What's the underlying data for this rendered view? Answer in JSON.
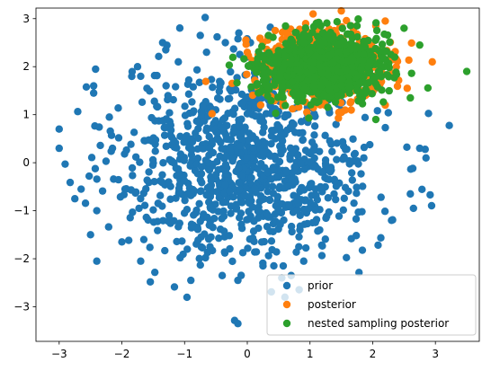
{
  "chart_data": {
    "type": "scatter",
    "title": "",
    "xlabel": "",
    "ylabel": "",
    "xlim": [
      -3.37,
      3.7
    ],
    "ylim": [
      -3.72,
      3.22
    ],
    "grid": false,
    "legend_position": "lower-right",
    "x_ticks": [
      -3,
      -2,
      -1,
      0,
      1,
      2,
      3
    ],
    "y_ticks": [
      -3,
      -2,
      -1,
      0,
      1,
      2,
      3
    ],
    "x_tick_labels": [
      "−3",
      "−2",
      "−1",
      "0",
      "1",
      "2",
      "3"
    ],
    "y_tick_labels": [
      "−3",
      "−2",
      "−1",
      "0",
      "1",
      "2",
      "3"
    ],
    "series": [
      {
        "name": "prior",
        "color": "#1f77b4",
        "distribution": {
          "mean": [
            0.0,
            0.0
          ],
          "std": [
            1.0,
            1.0
          ],
          "count": 1000
        },
        "points": [
          [
            -3.0,
            0.7
          ],
          [
            -3.0,
            0.3
          ],
          [
            -2.75,
            -0.75
          ],
          [
            -2.65,
            -0.55
          ],
          [
            -2.45,
            1.6
          ],
          [
            -2.45,
            1.45
          ],
          [
            -2.5,
            -1.5
          ],
          [
            -2.4,
            -2.05
          ],
          [
            -2.4,
            -1.0
          ],
          [
            -2.2,
            0.95
          ],
          [
            -2.15,
            0.3
          ],
          [
            -2.0,
            -1.65
          ],
          [
            -1.95,
            -0.55
          ],
          [
            -1.75,
            2.0
          ],
          [
            -1.7,
            1.8
          ],
          [
            -1.7,
            -2.05
          ],
          [
            -1.65,
            -1.6
          ],
          [
            -1.6,
            1.55
          ],
          [
            -1.35,
            2.5
          ],
          [
            -1.3,
            2.35
          ],
          [
            -1.1,
            2.1
          ],
          [
            -0.75,
            2.65
          ],
          [
            -0.65,
            2.3
          ],
          [
            -0.4,
            -2.35
          ],
          [
            -0.35,
            2.5
          ],
          [
            -0.15,
            -3.35
          ],
          [
            0.05,
            2.5
          ],
          [
            0.25,
            -2.15
          ],
          [
            0.7,
            -2.35
          ],
          [
            0.9,
            -2.05
          ],
          [
            2.65,
            -0.95
          ],
          [
            2.75,
            0.3
          ],
          [
            2.85,
            0.1
          ],
          [
            2.6,
            -0.65
          ],
          [
            2.3,
            -1.2
          ],
          [
            -0.15,
            -2.45
          ],
          [
            -0.9,
            -2.45
          ],
          [
            0.55,
            -2.4
          ],
          [
            0.6,
            -2.8
          ],
          [
            1.05,
            1.55
          ]
        ]
      },
      {
        "name": "posterior",
        "color": "#ff7f0e",
        "distribution": {
          "mean": [
            1.2,
            2.0
          ],
          "std": [
            0.45,
            0.35
          ],
          "count": 1000
        },
        "points": [
          [
            0.0,
            2.3
          ],
          [
            0.5,
            1.35
          ],
          [
            0.95,
            1.05
          ],
          [
            2.05,
            2.85
          ],
          [
            2.2,
            2.95
          ],
          [
            2.55,
            1.55
          ],
          [
            2.95,
            2.1
          ],
          [
            2.2,
            1.2
          ],
          [
            1.5,
            1.05
          ],
          [
            0.6,
            2.75
          ]
        ]
      },
      {
        "name": "nested sampling posterior",
        "color": "#2ca02c",
        "distribution": {
          "mean": [
            1.2,
            2.0
          ],
          "std": [
            0.45,
            0.33
          ],
          "count": 1000
        },
        "points": [
          [
            3.5,
            1.9
          ],
          [
            2.75,
            2.45
          ],
          [
            2.6,
            1.35
          ],
          [
            2.5,
            2.8
          ],
          [
            2.05,
            0.9
          ],
          [
            1.1,
            2.9
          ],
          [
            0.3,
            1.6
          ],
          [
            0.55,
            1.45
          ],
          [
            1.75,
            2.85
          ],
          [
            2.35,
            2.2
          ]
        ]
      }
    ],
    "legend": {
      "entries": [
        "prior",
        "posterior",
        "nested sampling posterior"
      ]
    }
  }
}
